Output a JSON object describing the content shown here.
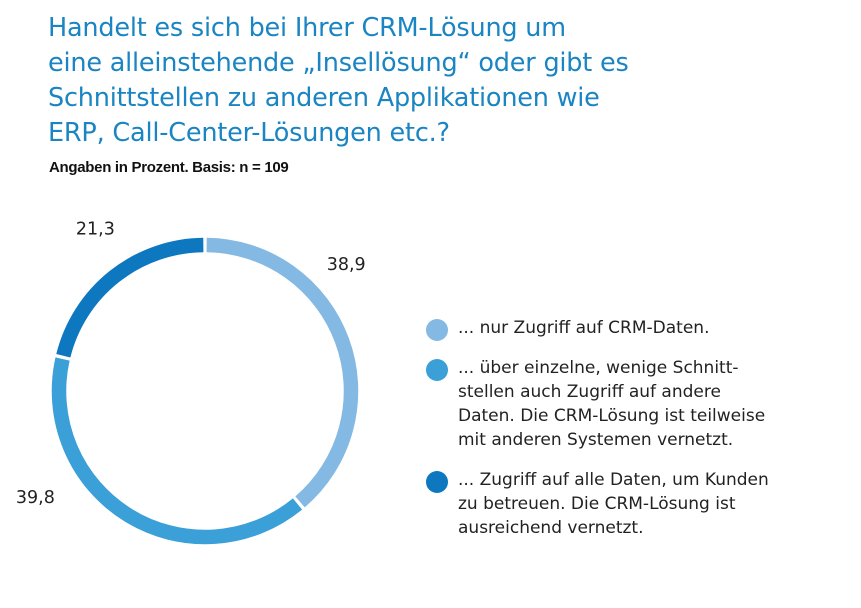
{
  "header": {
    "title_lines": [
      "Handelt es sich bei Ihrer CRM-Lösung um",
      "eine alleinstehende „Insellösung“ oder gibt es",
      "Schnittstellen zu anderen Applikationen wie",
      "ERP, Call-Center-Lösungen etc.?"
    ],
    "subtitle": "Angaben in Prozent. Basis: n = 109"
  },
  "chart_data": {
    "type": "pie",
    "variant": "donut",
    "title": "Handelt es sich bei Ihrer CRM-Lösung um eine alleinstehende „Insellösung“ oder gibt es Schnittstellen zu anderen Applikationen wie ERP, Call-Center-Lösungen etc.?",
    "subtitle": "Angaben in Prozent. Basis: n = 109",
    "unit": "%",
    "start": "top",
    "direction": "clockwise",
    "slices": [
      {
        "label": "... nur Zugriff auf CRM-Daten.",
        "value": 38.9,
        "display": "38,9",
        "color": "#84b9e3"
      },
      {
        "label": "... über einzelne, wenige Schnittstellen auch Zugriff auf andere Daten. Die CRM-Lösung ist teilweise mit anderen Systemen vernetzt.",
        "value": 39.8,
        "display": "39,8",
        "color": "#3b9fd8"
      },
      {
        "label": "... Zugriff auf alle Daten, um Kunden zu betreuen. Die CRM-Lösung ist ausreichend vernetzt.",
        "value": 21.3,
        "display": "21,3",
        "color": "#0d78bf"
      }
    ],
    "legend_position": "right"
  },
  "legend": {
    "items": [
      {
        "lines": [
          "... nur Zugriff auf CRM-Daten."
        ],
        "color": "#84b9e3"
      },
      {
        "lines": [
          "... über einzelne, wenige Schnitt-",
          "stellen auch Zugriff auf andere",
          "Daten. Die CRM-Lösung ist teilweise",
          "mit anderen Systemen vernetzt."
        ],
        "color": "#3b9fd8"
      },
      {
        "lines": [
          "...  Zugriff auf alle Daten, um Kunden",
          "zu betreuen. Die CRM-Lösung ist",
          "ausreichend vernetzt."
        ],
        "color": "#0d78bf"
      }
    ]
  }
}
